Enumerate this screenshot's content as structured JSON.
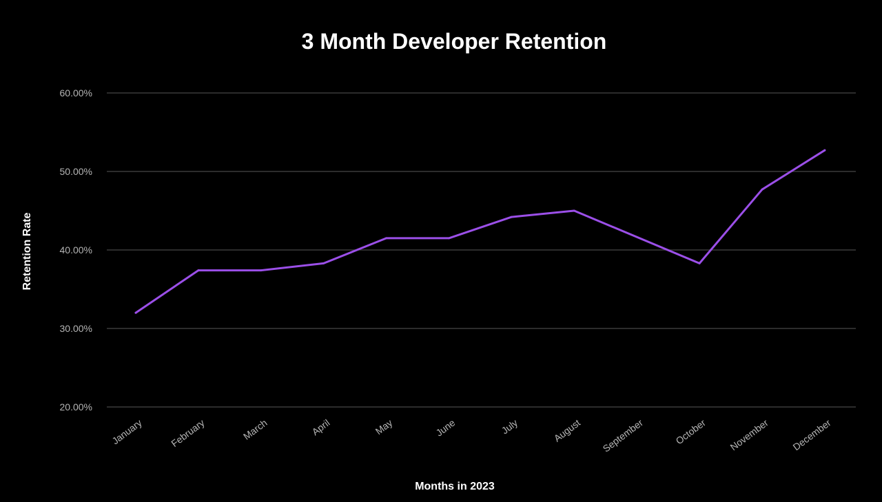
{
  "chart_data": {
    "type": "line",
    "title": "3 Month Developer Retention",
    "xlabel": "Months in 2023",
    "ylabel": "Retention Rate",
    "categories": [
      "January",
      "February",
      "March",
      "April",
      "May",
      "June",
      "July",
      "August",
      "September",
      "October",
      "November",
      "December"
    ],
    "yticks": [
      20,
      30,
      40,
      50,
      60
    ],
    "ytick_labels": [
      "20.00%",
      "30.00%",
      "40.00%",
      "50.00%",
      "60.00%"
    ],
    "ylim": [
      20,
      60
    ],
    "grid": true,
    "legend": "none",
    "series": [
      {
        "name": "3 Month Developer Retention",
        "color": "#9b4fe8",
        "points": [
          {
            "x": 0,
            "y": 32.0
          },
          {
            "x": 1,
            "y": 37.4
          },
          {
            "x": 2,
            "y": 37.4
          },
          {
            "x": 3,
            "y": 38.3
          },
          {
            "x": 4,
            "y": 41.5
          },
          {
            "x": 5,
            "y": 41.5
          },
          {
            "x": 6,
            "y": 44.2
          },
          {
            "x": 7,
            "y": 45.0
          },
          {
            "x": 9,
            "y": 38.3
          },
          {
            "x": 10,
            "y": 47.7
          },
          {
            "x": 11,
            "y": 52.7
          }
        ]
      }
    ]
  }
}
